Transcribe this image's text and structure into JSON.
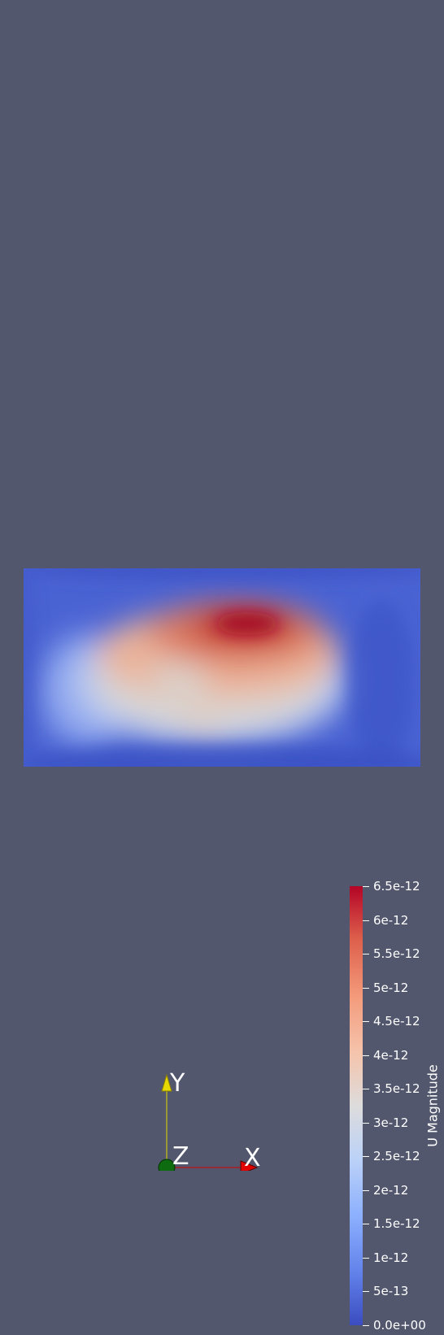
{
  "colorbar": {
    "title": "U Magnitude",
    "ticks": [
      "6.5e-12",
      "6e-12",
      "5.5e-12",
      "5e-12",
      "4.5e-12",
      "4e-12",
      "3.5e-12",
      "3e-12",
      "2.5e-12",
      "2e-12",
      "1.5e-12",
      "1e-12",
      "5e-13",
      "0.0e+00"
    ],
    "tick_values": [
      6.5e-12,
      6e-12,
      5.5e-12,
      5e-12,
      4.5e-12,
      4e-12,
      3.5e-12,
      3e-12,
      2.5e-12,
      2e-12,
      1.5e-12,
      1e-12,
      5e-13,
      0
    ],
    "range": [
      0,
      6.5e-12
    ],
    "colormap": [
      "#3b4cc0",
      "#dddcdc",
      "#b40426"
    ]
  },
  "orientation_axes": {
    "x_label": "X",
    "y_label": "Y",
    "z_label": "Z",
    "x_color": "#d40000",
    "y_color": "#e6d800",
    "z_color": "#006400"
  },
  "viewport": {
    "background": "#52576e"
  }
}
